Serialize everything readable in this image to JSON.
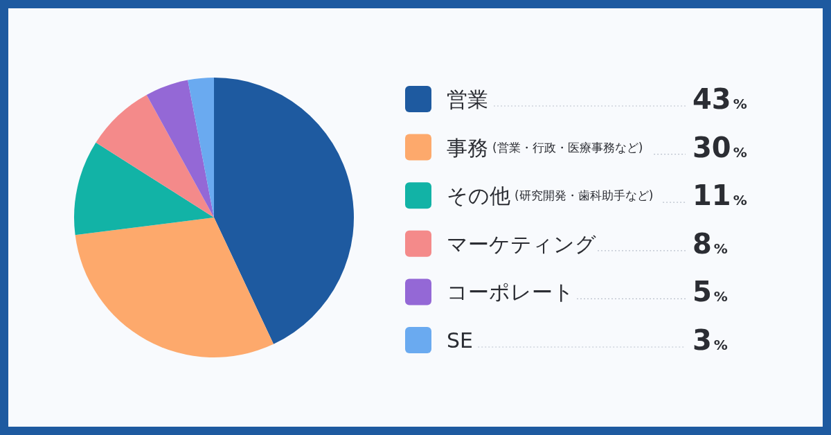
{
  "chart_data": {
    "type": "pie",
    "categories": [
      "営業",
      "事務 (営業・行政・医療事務など)",
      "その他 (研究開発・歯科助手など)",
      "マーケティング",
      "コーポレート",
      "SE"
    ],
    "values": [
      43,
      30,
      11,
      8,
      5,
      3
    ],
    "colors": [
      "#1e5aa0",
      "#fda96c",
      "#12b3a6",
      "#f48a8a",
      "#9468d6",
      "#6aaaf0"
    ],
    "value_labels": [
      "43%",
      "30%",
      "11%",
      "8%",
      "5%",
      "3%"
    ],
    "legend": "right"
  }
}
